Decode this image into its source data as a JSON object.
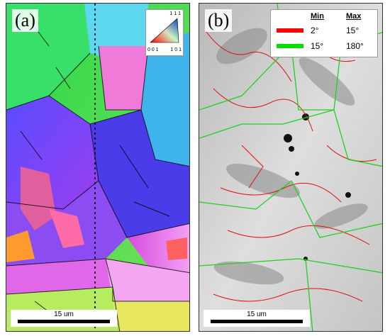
{
  "panel_a": {
    "label": "(a)",
    "scale_bar": "15 um",
    "ipf_key": {
      "top": "1 1 1",
      "left": "0 0 1",
      "right": "1 0 1"
    }
  },
  "panel_b": {
    "label": "(b)",
    "scale_bar": "15 um",
    "legend": {
      "col_min": "Min",
      "col_max": "Max",
      "rows": [
        {
          "color": "#ff0000",
          "min": "2°",
          "max": "15°"
        },
        {
          "color": "#00e000",
          "min": "15°",
          "max": "180°"
        }
      ]
    }
  }
}
